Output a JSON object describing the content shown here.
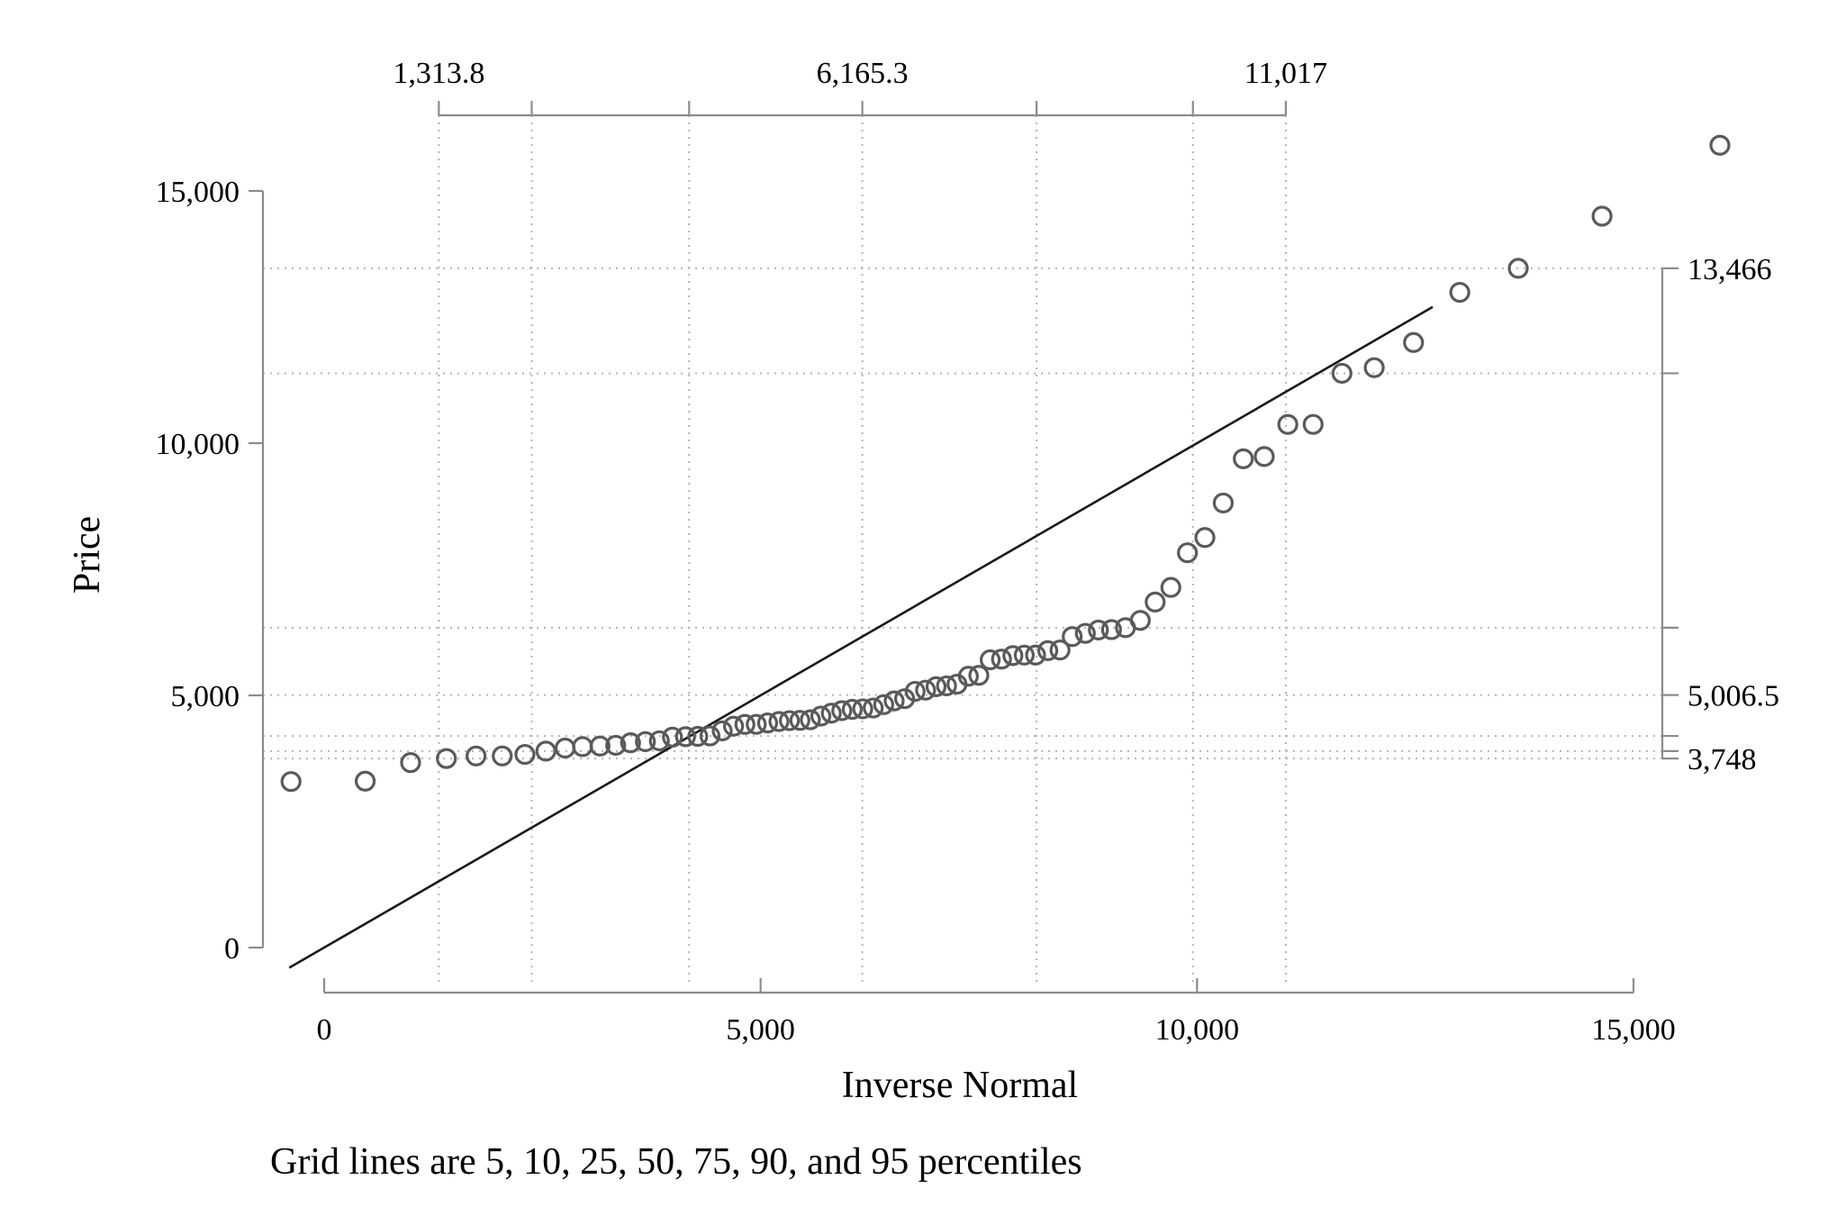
{
  "chart_data": {
    "type": "scatter",
    "title": "",
    "xlabel": "Inverse Normal",
    "ylabel": "Price",
    "note": "Grid lines are 5, 10, 25, 50, 75, 90, and 95 percentiles",
    "xlim": [
      -500,
      15000
    ],
    "ylim": [
      -400,
      16000
    ],
    "x_ticks": [
      {
        "value": 0,
        "label": "0"
      },
      {
        "value": 5000,
        "label": "5,000"
      },
      {
        "value": 10000,
        "label": "10,000"
      },
      {
        "value": 15000,
        "label": "15,000"
      }
    ],
    "y_ticks": [
      {
        "value": 0,
        "label": "0"
      },
      {
        "value": 5000,
        "label": "5,000"
      },
      {
        "value": 10000,
        "label": "10,000"
      },
      {
        "value": 15000,
        "label": "15,000"
      }
    ],
    "top_percentile_ticks": [
      {
        "value": 1313.8,
        "label": "1,313.8"
      },
      {
        "value": 2378
      },
      {
        "value": 4181
      },
      {
        "value": 6165.3,
        "label": "6,165.3"
      },
      {
        "value": 8161
      },
      {
        "value": 9953
      },
      {
        "value": 11017,
        "label": "11,017"
      }
    ],
    "right_percentile_ticks": [
      {
        "value": 3748,
        "label": "3,748"
      },
      {
        "value": 3895
      },
      {
        "value": 4195
      },
      {
        "value": 5006.5,
        "label": "5,006.5"
      },
      {
        "value": 6342
      },
      {
        "value": 11385
      },
      {
        "value": 13466,
        "label": "13,466"
      }
    ],
    "grid": true,
    "reference_line": {
      "x": [
        -400,
        12700
      ],
      "y": [
        -400,
        12700
      ]
    },
    "points": [
      {
        "x": -380,
        "y": 3291
      },
      {
        "x": 470,
        "y": 3299
      },
      {
        "x": 990,
        "y": 3667
      },
      {
        "x": 1400,
        "y": 3748
      },
      {
        "x": 1740,
        "y": 3798
      },
      {
        "x": 2040,
        "y": 3799
      },
      {
        "x": 2300,
        "y": 3829
      },
      {
        "x": 2540,
        "y": 3895
      },
      {
        "x": 2760,
        "y": 3955
      },
      {
        "x": 2960,
        "y": 3984
      },
      {
        "x": 3160,
        "y": 3995
      },
      {
        "x": 3340,
        "y": 4010
      },
      {
        "x": 3510,
        "y": 4060
      },
      {
        "x": 3680,
        "y": 4082
      },
      {
        "x": 3840,
        "y": 4099
      },
      {
        "x": 3990,
        "y": 4172
      },
      {
        "x": 4140,
        "y": 4181
      },
      {
        "x": 4280,
        "y": 4187
      },
      {
        "x": 4420,
        "y": 4195
      },
      {
        "x": 4560,
        "y": 4296
      },
      {
        "x": 4690,
        "y": 4389
      },
      {
        "x": 4820,
        "y": 4424
      },
      {
        "x": 4950,
        "y": 4425
      },
      {
        "x": 5080,
        "y": 4453
      },
      {
        "x": 5210,
        "y": 4482
      },
      {
        "x": 5330,
        "y": 4499
      },
      {
        "x": 5450,
        "y": 4504
      },
      {
        "x": 5570,
        "y": 4516
      },
      {
        "x": 5690,
        "y": 4589
      },
      {
        "x": 5810,
        "y": 4647
      },
      {
        "x": 5930,
        "y": 4697
      },
      {
        "x": 6050,
        "y": 4723
      },
      {
        "x": 6170,
        "y": 4733
      },
      {
        "x": 6290,
        "y": 4749
      },
      {
        "x": 6410,
        "y": 4816
      },
      {
        "x": 6530,
        "y": 4890
      },
      {
        "x": 6650,
        "y": 4934
      },
      {
        "x": 6770,
        "y": 5079
      },
      {
        "x": 6890,
        "y": 5104
      },
      {
        "x": 7010,
        "y": 5172
      },
      {
        "x": 7130,
        "y": 5189
      },
      {
        "x": 7250,
        "y": 5222
      },
      {
        "x": 7380,
        "y": 5379
      },
      {
        "x": 7500,
        "y": 5397
      },
      {
        "x": 7630,
        "y": 5705
      },
      {
        "x": 7760,
        "y": 5719
      },
      {
        "x": 7890,
        "y": 5788
      },
      {
        "x": 8020,
        "y": 5798
      },
      {
        "x": 8150,
        "y": 5799
      },
      {
        "x": 8290,
        "y": 5886
      },
      {
        "x": 8430,
        "y": 5899
      },
      {
        "x": 8570,
        "y": 6165
      },
      {
        "x": 8720,
        "y": 6229
      },
      {
        "x": 8870,
        "y": 6295
      },
      {
        "x": 9020,
        "y": 6303
      },
      {
        "x": 9180,
        "y": 6342
      },
      {
        "x": 9350,
        "y": 6486
      },
      {
        "x": 9520,
        "y": 6850
      },
      {
        "x": 9700,
        "y": 7140
      },
      {
        "x": 9890,
        "y": 7827
      },
      {
        "x": 10090,
        "y": 8129
      },
      {
        "x": 10300,
        "y": 8814
      },
      {
        "x": 10530,
        "y": 9690
      },
      {
        "x": 10770,
        "y": 9735
      },
      {
        "x": 11040,
        "y": 10371
      },
      {
        "x": 11330,
        "y": 10372
      },
      {
        "x": 11660,
        "y": 11385
      },
      {
        "x": 12030,
        "y": 11497
      },
      {
        "x": 12480,
        "y": 11995
      },
      {
        "x": 13010,
        "y": 12990
      },
      {
        "x": 13680,
        "y": 13466
      },
      {
        "x": 14640,
        "y": 14500
      },
      {
        "x": 15990,
        "y": 15906
      }
    ]
  }
}
